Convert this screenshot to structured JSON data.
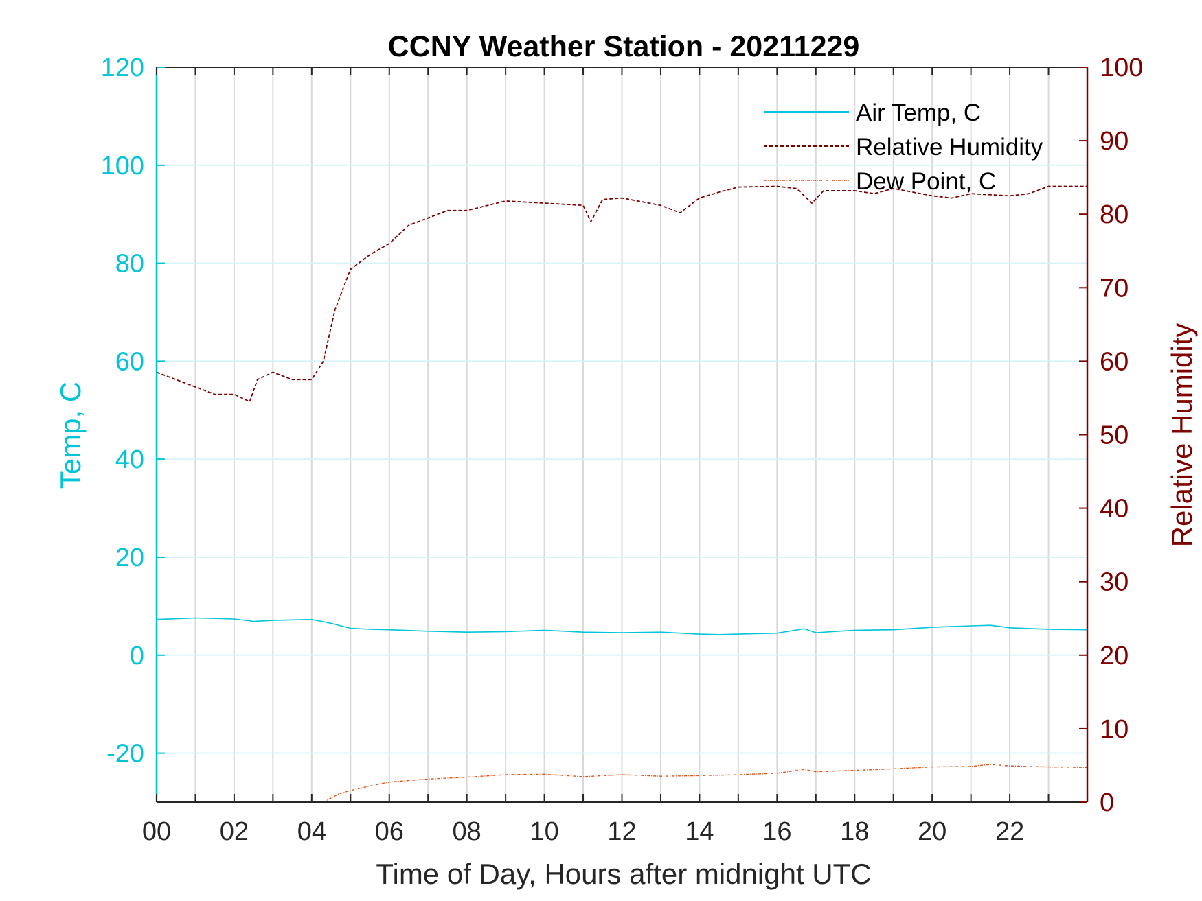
{
  "chart_data": {
    "type": "line",
    "title": "CCNY Weather Station - 20211229",
    "xlabel": "Time of Day, Hours after midnight UTC",
    "ylabel_left": "Temp, C",
    "ylabel_right": "Relative Humidity",
    "xlim": [
      0,
      24
    ],
    "ylim_left": [
      -30,
      120
    ],
    "ylim_right": [
      0,
      100
    ],
    "x_ticks": [
      0,
      2,
      4,
      6,
      8,
      10,
      12,
      14,
      16,
      18,
      20,
      22
    ],
    "x_tick_labels": [
      "00",
      "02",
      "04",
      "06",
      "08",
      "10",
      "12",
      "14",
      "16",
      "18",
      "20",
      "22"
    ],
    "x_grid": [
      0,
      1,
      2,
      3,
      4,
      5,
      6,
      7,
      8,
      9,
      10,
      11,
      12,
      13,
      14,
      15,
      16,
      17,
      18,
      19,
      20,
      21,
      22,
      23
    ],
    "y_ticks_left": [
      -20,
      0,
      20,
      40,
      60,
      80,
      100,
      120
    ],
    "y_ticks_right": [
      0,
      10,
      20,
      30,
      40,
      50,
      60,
      70,
      80,
      90,
      100
    ],
    "grid": true,
    "legend_position": "top-right",
    "colors": {
      "temp": "#00c4d8",
      "rh": "#7a0000",
      "dew": "#d95319"
    },
    "series": [
      {
        "name": "Air Temp, C",
        "axis": "left",
        "style": "solid",
        "x": [
          0,
          1,
          2,
          2.5,
          3,
          4,
          4.5,
          5,
          5.5,
          6,
          7,
          8,
          9,
          10,
          11,
          12,
          13,
          14,
          14.5,
          15,
          16,
          16.7,
          17,
          18,
          19,
          20,
          21,
          21.5,
          22,
          23,
          24
        ],
        "y": [
          7.3,
          7.6,
          7.4,
          6.9,
          7.1,
          7.3,
          6.5,
          5.5,
          5.3,
          5.2,
          4.9,
          4.7,
          4.8,
          5.1,
          4.7,
          4.6,
          4.7,
          4.3,
          4.2,
          4.3,
          4.5,
          5.4,
          4.6,
          5.1,
          5.2,
          5.7,
          6.0,
          6.1,
          5.6,
          5.3,
          5.2
        ]
      },
      {
        "name": "Relative Humidity",
        "axis": "right",
        "style": "dashed",
        "x": [
          0,
          0.5,
          1,
          1.5,
          2,
          2.4,
          2.6,
          3,
          3.5,
          4,
          4.3,
          4.6,
          5,
          5.5,
          6,
          6.5,
          7,
          7.5,
          8,
          9,
          10,
          11,
          11.2,
          11.5,
          12,
          13,
          13.5,
          14,
          14.5,
          15,
          16,
          16.5,
          16.9,
          17.2,
          18,
          18.5,
          19,
          20,
          20.5,
          21,
          22,
          22.5,
          23,
          24
        ],
        "y": [
          58.5,
          57.5,
          56.5,
          55.5,
          55.5,
          54.5,
          57.5,
          58.5,
          57.5,
          57.5,
          60,
          67,
          72.5,
          74.5,
          76,
          78.5,
          79.5,
          80.5,
          80.5,
          81.8,
          81.5,
          81.2,
          79,
          82,
          82.2,
          81.2,
          80.2,
          82.2,
          83,
          83.7,
          83.8,
          83.5,
          81.5,
          83.2,
          83.2,
          82.8,
          83.5,
          82.5,
          82.2,
          82.8,
          82.5,
          82.8,
          83.8,
          83.8
        ]
      },
      {
        "name": "Dew Point, C",
        "axis": "left",
        "style": "dash-dot",
        "x": [
          4.3,
          4.7,
          5,
          5.5,
          6,
          7,
          8,
          9,
          10,
          11,
          12,
          13,
          14,
          15,
          16,
          16.7,
          17,
          18,
          19,
          20,
          21,
          21.5,
          22,
          23,
          24
        ],
        "y": [
          -30,
          -28.3,
          -27.6,
          -26.7,
          -25.9,
          -25.3,
          -24.9,
          -24.4,
          -24.3,
          -24.8,
          -24.4,
          -24.7,
          -24.6,
          -24.4,
          -24.1,
          -23.3,
          -23.8,
          -23.5,
          -23.2,
          -22.8,
          -22.7,
          -22.3,
          -22.6,
          -22.8,
          -22.9
        ]
      }
    ]
  }
}
